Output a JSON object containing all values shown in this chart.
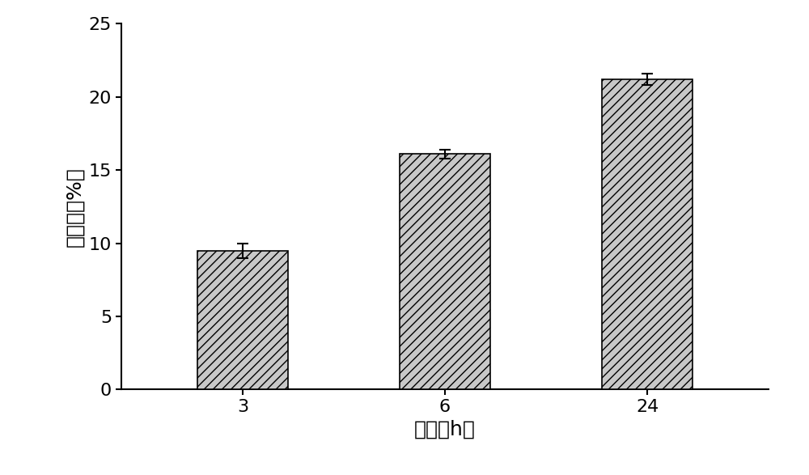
{
  "categories": [
    "3",
    "6",
    "24"
  ],
  "values": [
    9.5,
    16.1,
    21.2
  ],
  "errors": [
    0.5,
    0.3,
    0.4
  ],
  "xlabel": "时间（h）",
  "ylabel": "自溶度（%）",
  "ylim": [
    0,
    25
  ],
  "yticks": [
    0,
    5,
    10,
    15,
    20,
    25
  ],
  "bar_color": "#c8c8c8",
  "bar_edgecolor": "#000000",
  "hatch": "///",
  "bar_width": 0.45,
  "xlabel_fontsize": 18,
  "ylabel_fontsize": 18,
  "tick_fontsize": 16,
  "background_color": "#ffffff",
  "capsize": 5,
  "elinewidth": 1.5,
  "ecapthick": 1.5
}
